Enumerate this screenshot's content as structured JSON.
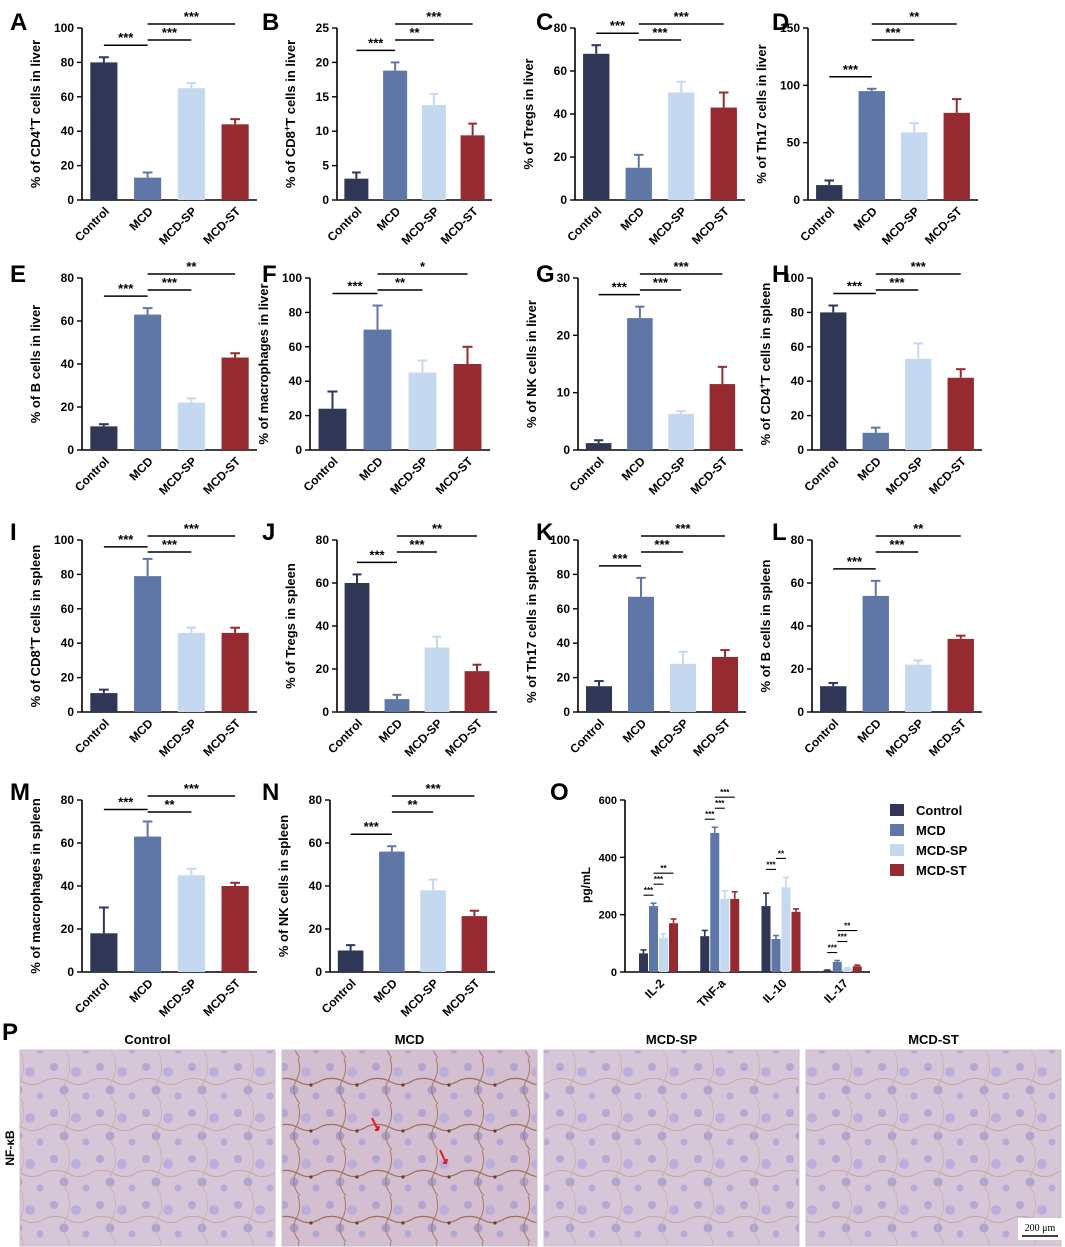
{
  "figure": {
    "colors": {
      "Control": "#2f3656",
      "MCD": "#5f77a6",
      "MCD-SP": "#c4d8f0",
      "MCD-ST": "#962a31",
      "axis": "#000000"
    },
    "groups": [
      "Control",
      "MCD",
      "MCD-SP",
      "MCD-ST"
    ]
  },
  "chart_data": [
    {
      "panel": "A",
      "type": "bar",
      "ylabel_prefix": "% of CD4",
      "ylabel_sup": "+",
      "ylabel_suffix": "T cells in liver",
      "yticks": [
        0,
        20,
        40,
        60,
        80,
        100
      ],
      "ylim": [
        0,
        100
      ],
      "categories": [
        "Control",
        "MCD",
        "MCD-SP",
        "MCD-ST"
      ],
      "values": [
        80,
        13,
        65,
        44
      ],
      "errors": [
        3,
        3,
        3,
        3
      ],
      "sig": [
        {
          "from": 0,
          "to": 1,
          "label": "***"
        },
        {
          "from": 1,
          "to": 2,
          "label": "***"
        },
        {
          "from": 1,
          "to": 3,
          "label": "***"
        }
      ]
    },
    {
      "panel": "B",
      "type": "bar",
      "ylabel_prefix": "% of CD8",
      "ylabel_sup": "+",
      "ylabel_suffix": "T cells in liver",
      "yticks": [
        0,
        5,
        10,
        15,
        20,
        25
      ],
      "ylim": [
        0,
        25
      ],
      "categories": [
        "Control",
        "MCD",
        "MCD-SP",
        "MCD-ST"
      ],
      "values": [
        3.1,
        18.8,
        13.8,
        9.4
      ],
      "errors": [
        0.9,
        1.2,
        1.6,
        1.7
      ],
      "sig": [
        {
          "from": 0,
          "to": 1,
          "label": "***"
        },
        {
          "from": 1,
          "to": 2,
          "label": "**"
        },
        {
          "from": 1,
          "to": 3,
          "label": "***"
        }
      ]
    },
    {
      "panel": "C",
      "type": "bar",
      "ylabel": "% of Tregs in liver",
      "yticks": [
        0,
        20,
        40,
        60,
        80
      ],
      "ylim": [
        0,
        80
      ],
      "categories": [
        "Control",
        "MCD",
        "MCD-SP",
        "MCD-ST"
      ],
      "values": [
        68,
        15,
        50,
        43
      ],
      "errors": [
        4,
        6,
        5,
        7
      ],
      "sig": [
        {
          "from": 0,
          "to": 1,
          "label": "***"
        },
        {
          "from": 1,
          "to": 2,
          "label": "***"
        },
        {
          "from": 1,
          "to": 3,
          "label": "***"
        }
      ]
    },
    {
      "panel": "D",
      "type": "bar",
      "ylabel": "% of Th17 cells in liver",
      "yticks": [
        0,
        50,
        100,
        150
      ],
      "ylim": [
        0,
        150
      ],
      "categories": [
        "Control",
        "MCD",
        "MCD-SP",
        "MCD-ST"
      ],
      "values": [
        13,
        95,
        59,
        76
      ],
      "errors": [
        4,
        2,
        8,
        12
      ],
      "sig": [
        {
          "from": 0,
          "to": 1,
          "label": "***"
        },
        {
          "from": 1,
          "to": 2,
          "label": "***"
        },
        {
          "from": 1,
          "to": 3,
          "label": "**"
        }
      ]
    },
    {
      "panel": "E",
      "type": "bar",
      "ylabel": "% of B cells in liver",
      "yticks": [
        0,
        20,
        40,
        60,
        80
      ],
      "ylim": [
        0,
        80
      ],
      "categories": [
        "Control",
        "MCD",
        "MCD-SP",
        "MCD-ST"
      ],
      "values": [
        11,
        63,
        22,
        43
      ],
      "errors": [
        1,
        3,
        2,
        2
      ],
      "sig": [
        {
          "from": 0,
          "to": 1,
          "label": "***"
        },
        {
          "from": 1,
          "to": 2,
          "label": "***"
        },
        {
          "from": 1,
          "to": 3,
          "label": "**"
        }
      ]
    },
    {
      "panel": "F",
      "type": "bar",
      "ylabel": "% of macrophages in liver",
      "yticks": [
        0,
        20,
        40,
        60,
        80,
        100
      ],
      "ylim": [
        0,
        100
      ],
      "categories": [
        "Control",
        "MCD",
        "MCD-SP",
        "MCD-ST"
      ],
      "values": [
        24,
        70,
        45,
        50
      ],
      "errors": [
        10,
        14,
        7,
        10
      ],
      "sig": [
        {
          "from": 0,
          "to": 1,
          "label": "***"
        },
        {
          "from": 1,
          "to": 2,
          "label": "**"
        },
        {
          "from": 1,
          "to": 3,
          "label": "*"
        }
      ]
    },
    {
      "panel": "G",
      "type": "bar",
      "ylabel": "% of NK cells in liver",
      "yticks": [
        0,
        10,
        20,
        30
      ],
      "ylim": [
        0,
        30
      ],
      "categories": [
        "Control",
        "MCD",
        "MCD-SP",
        "MCD-ST"
      ],
      "values": [
        1.2,
        23,
        6.3,
        11.5
      ],
      "errors": [
        0.5,
        2,
        0.5,
        3
      ],
      "sig": [
        {
          "from": 0,
          "to": 1,
          "label": "***"
        },
        {
          "from": 1,
          "to": 2,
          "label": "***"
        },
        {
          "from": 1,
          "to": 3,
          "label": "***"
        }
      ]
    },
    {
      "panel": "H",
      "type": "bar",
      "ylabel_prefix": "% of CD4",
      "ylabel_sup": "+",
      "ylabel_suffix": "T cells in spleen",
      "yticks": [
        0,
        20,
        40,
        60,
        80,
        100
      ],
      "ylim": [
        0,
        100
      ],
      "categories": [
        "Control",
        "MCD",
        "MCD-SP",
        "MCD-ST"
      ],
      "values": [
        80,
        10,
        53,
        42
      ],
      "errors": [
        4,
        3,
        9,
        5
      ],
      "sig": [
        {
          "from": 0,
          "to": 1,
          "label": "***"
        },
        {
          "from": 1,
          "to": 2,
          "label": "***"
        },
        {
          "from": 1,
          "to": 3,
          "label": "***"
        }
      ]
    },
    {
      "panel": "I",
      "type": "bar",
      "ylabel_prefix": "% of CD8",
      "ylabel_sup": "+",
      "ylabel_suffix": "T cells in spleen",
      "yticks": [
        0,
        20,
        40,
        60,
        80,
        100
      ],
      "ylim": [
        0,
        100
      ],
      "categories": [
        "Control",
        "MCD",
        "MCD-SP",
        "MCD-ST"
      ],
      "values": [
        11,
        79,
        46,
        46
      ],
      "errors": [
        2,
        10,
        3,
        3
      ],
      "sig": [
        {
          "from": 0,
          "to": 1,
          "label": "***"
        },
        {
          "from": 1,
          "to": 2,
          "label": "***"
        },
        {
          "from": 1,
          "to": 3,
          "label": "***"
        }
      ]
    },
    {
      "panel": "J",
      "type": "bar",
      "ylabel": "% of Tregs in spleen",
      "yticks": [
        0,
        20,
        40,
        60,
        80
      ],
      "ylim": [
        0,
        80
      ],
      "categories": [
        "Control",
        "MCD",
        "MCD-SP",
        "MCD-ST"
      ],
      "values": [
        60,
        6,
        30,
        19
      ],
      "errors": [
        4,
        2,
        5,
        3
      ],
      "sig": [
        {
          "from": 0,
          "to": 1,
          "label": "***"
        },
        {
          "from": 1,
          "to": 2,
          "label": "***"
        },
        {
          "from": 1,
          "to": 3,
          "label": "**"
        }
      ]
    },
    {
      "panel": "K",
      "type": "bar",
      "ylabel": "% of Th17 cells in spleen",
      "yticks": [
        0,
        20,
        40,
        60,
        80,
        100
      ],
      "ylim": [
        0,
        100
      ],
      "categories": [
        "Control",
        "MCD",
        "MCD-SP",
        "MCD-ST"
      ],
      "values": [
        15,
        67,
        28,
        32
      ],
      "errors": [
        3,
        11,
        7,
        4
      ],
      "sig": [
        {
          "from": 0,
          "to": 1,
          "label": "***"
        },
        {
          "from": 1,
          "to": 2,
          "label": "***"
        },
        {
          "from": 1,
          "to": 3,
          "label": "***"
        }
      ]
    },
    {
      "panel": "L",
      "type": "bar",
      "ylabel": "% of B cells in spleen",
      "yticks": [
        0,
        20,
        40,
        60,
        80
      ],
      "ylim": [
        0,
        80
      ],
      "categories": [
        "Control",
        "MCD",
        "MCD-SP",
        "MCD-ST"
      ],
      "values": [
        12,
        54,
        22,
        34
      ],
      "errors": [
        1.5,
        7,
        2,
        1.5
      ],
      "sig": [
        {
          "from": 0,
          "to": 1,
          "label": "***"
        },
        {
          "from": 1,
          "to": 2,
          "label": "***"
        },
        {
          "from": 1,
          "to": 3,
          "label": "**"
        }
      ]
    },
    {
      "panel": "M",
      "type": "bar",
      "ylabel": "% of macrophages in spleen",
      "yticks": [
        0,
        20,
        40,
        60,
        80
      ],
      "ylim": [
        0,
        80
      ],
      "categories": [
        "Control",
        "MCD",
        "MCD-SP",
        "MCD-ST"
      ],
      "values": [
        18,
        63,
        45,
        40
      ],
      "errors": [
        12,
        7,
        3,
        1.5
      ],
      "sig": [
        {
          "from": 0,
          "to": 1,
          "label": "***"
        },
        {
          "from": 1,
          "to": 2,
          "label": "**"
        },
        {
          "from": 1,
          "to": 3,
          "label": "***"
        }
      ]
    },
    {
      "panel": "N",
      "type": "bar",
      "ylabel": "% of NK cells in spleen",
      "yticks": [
        0,
        20,
        40,
        60,
        80
      ],
      "ylim": [
        0,
        80
      ],
      "categories": [
        "Control",
        "MCD",
        "MCD-SP",
        "MCD-ST"
      ],
      "values": [
        10,
        56,
        38,
        26
      ],
      "errors": [
        2.5,
        2.5,
        5,
        2.5
      ],
      "sig": [
        {
          "from": 0,
          "to": 1,
          "label": "***"
        },
        {
          "from": 1,
          "to": 2,
          "label": "**"
        },
        {
          "from": 1,
          "to": 3,
          "label": "***"
        }
      ]
    },
    {
      "panel": "O",
      "type": "grouped-bar",
      "ylabel": "pg/mL",
      "yticks": [
        0,
        200,
        400,
        600
      ],
      "ylim": [
        0,
        600
      ],
      "categories": [
        "IL-2",
        "TNF-a",
        "IL-10",
        "IL-17"
      ],
      "series": [
        {
          "name": "Control",
          "values": [
            65,
            125,
            230,
            5
          ],
          "errors": [
            12,
            20,
            45,
            2
          ]
        },
        {
          "name": "MCD",
          "values": [
            230,
            485,
            115,
            35
          ],
          "errors": [
            10,
            20,
            12,
            5
          ]
        },
        {
          "name": "MCD-SP",
          "values": [
            118,
            255,
            295,
            12
          ],
          "errors": [
            15,
            28,
            35,
            3
          ]
        },
        {
          "name": "MCD-ST",
          "values": [
            170,
            255,
            210,
            20
          ],
          "errors": [
            15,
            25,
            10,
            4
          ]
        }
      ],
      "sig": [
        {
          "cat": 0,
          "from": 0,
          "to": 1,
          "label": "***"
        },
        {
          "cat": 0,
          "from": 1,
          "to": 2,
          "label": "***"
        },
        {
          "cat": 0,
          "from": 1,
          "to": 3,
          "label": "**"
        },
        {
          "cat": 1,
          "from": 0,
          "to": 1,
          "label": "***"
        },
        {
          "cat": 1,
          "from": 1,
          "to": 2,
          "label": "***"
        },
        {
          "cat": 1,
          "from": 1,
          "to": 3,
          "label": "***"
        },
        {
          "cat": 2,
          "from": 0,
          "to": 1,
          "label": "***"
        },
        {
          "cat": 2,
          "from": 1,
          "to": 2,
          "label": "**"
        },
        {
          "cat": 3,
          "from": 0,
          "to": 1,
          "label": "***"
        },
        {
          "cat": 3,
          "from": 1,
          "to": 2,
          "label": "***"
        },
        {
          "cat": 3,
          "from": 1,
          "to": 3,
          "label": "**"
        }
      ],
      "legend": [
        "Control",
        "MCD",
        "MCD-SP",
        "MCD-ST"
      ]
    }
  ],
  "panel_p": {
    "letter": "P",
    "row_label": "NF-κB",
    "titles": [
      "Control",
      "MCD",
      "MCD-SP",
      "MCD-ST"
    ],
    "scale_bar": "200 μm"
  }
}
